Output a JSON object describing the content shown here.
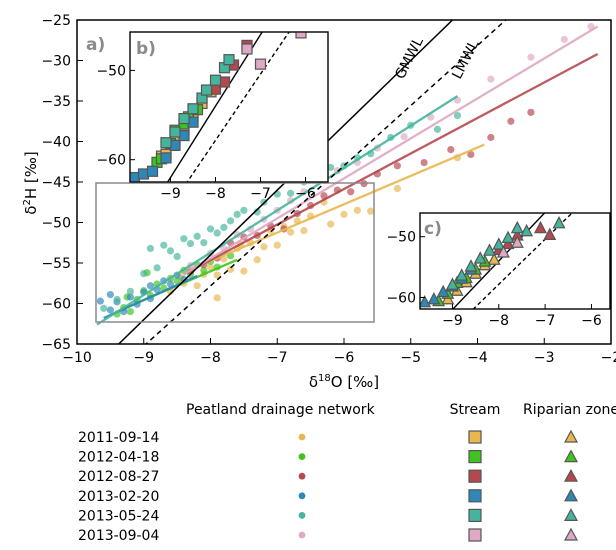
{
  "chart_data": {
    "type": "scatter",
    "xlabel": "δ18O [‰]",
    "ylabel": "δ2H [‰]",
    "xlim": [
      -10,
      -2
    ],
    "ylim": [
      -65,
      -25
    ],
    "x_ticks": [
      "−10",
      "−9",
      "−8",
      "−7",
      "−6",
      "−5",
      "−4",
      "−3",
      "−2"
    ],
    "y_ticks": [
      "−25",
      "−30",
      "−35",
      "−40",
      "−45",
      "−50",
      "−55",
      "−60",
      "−65"
    ],
    "grid": false,
    "reference_lines": [
      {
        "label": "GMWL",
        "style": "solid",
        "color": "#000000",
        "x": [
          -9.5,
          -4.35
        ],
        "y": [
          -66,
          -24.8
        ]
      },
      {
        "label": "LMWL",
        "style": "dashed",
        "color": "#000000",
        "x": [
          -9.1,
          -3.55
        ],
        "y": [
          -66,
          -24.8
        ]
      }
    ],
    "panel_labels": {
      "a": "a)",
      "b": "b)",
      "c": "c)"
    },
    "legend": {
      "headers": [
        "Peatland drainage network",
        "Stream",
        "Riparian zone"
      ],
      "dates": [
        "2011-09-14",
        "2012-04-18",
        "2012-08-27",
        "2013-02-20",
        "2013-05-24",
        "2013-09-04"
      ],
      "colors": [
        "#e8b74e",
        "#3ec41e",
        "#b5484e",
        "#2d88b8",
        "#44b59c",
        "#dea9c4"
      ]
    },
    "series": [
      {
        "name": "2011-09-14",
        "color": "#e8b74e",
        "fit": {
          "x": [
            -8.3,
            -3.9
          ],
          "y": [
            -55.8,
            -40.4
          ]
        },
        "points": [
          [
            -8.6,
            -58.5
          ],
          [
            -8.4,
            -57.5
          ],
          [
            -8.2,
            -57.8
          ],
          [
            -8.1,
            -56.4
          ],
          [
            -8.0,
            -55.5
          ],
          [
            -7.9,
            -56.5
          ],
          [
            -7.8,
            -54.5
          ],
          [
            -7.7,
            -55.8
          ],
          [
            -7.6,
            -53.2
          ],
          [
            -7.5,
            -56
          ],
          [
            -7.4,
            -52.5
          ],
          [
            -7.3,
            -54.6
          ],
          [
            -7.2,
            -53
          ],
          [
            -7.1,
            -51
          ],
          [
            -7.0,
            -52.8
          ],
          [
            -6.9,
            -50.5
          ],
          [
            -6.8,
            -51.2
          ],
          [
            -6.7,
            -49.8
          ],
          [
            -6.6,
            -51
          ],
          [
            -6.5,
            -49.2
          ],
          [
            -6.3,
            -47.5
          ],
          [
            -6.2,
            -50.2
          ],
          [
            -6.0,
            -49
          ],
          [
            -5.8,
            -48.5
          ],
          [
            -5.6,
            -48.6
          ],
          [
            -5.2,
            -45.8
          ],
          [
            -4.3,
            -42
          ],
          [
            -7.9,
            -59.3
          ],
          [
            -8.45,
            -56.7
          ],
          [
            -7.55,
            -52.7
          ]
        ]
      },
      {
        "name": "2012-04-18",
        "color": "#3ec41e",
        "fit": {
          "x": [
            -9.4,
            -7.6
          ],
          "y": [
            -61,
            -54.6
          ]
        },
        "points": [
          [
            -9.4,
            -61.3
          ],
          [
            -9.3,
            -60.5
          ],
          [
            -9.2,
            -61
          ],
          [
            -9.1,
            -59.5
          ],
          [
            -9.0,
            -58.4
          ],
          [
            -8.9,
            -59
          ],
          [
            -8.8,
            -57.6
          ],
          [
            -8.7,
            -58.1
          ],
          [
            -8.6,
            -56.9
          ],
          [
            -8.5,
            -57.2
          ],
          [
            -8.4,
            -55.9
          ],
          [
            -8.3,
            -56.4
          ],
          [
            -8.2,
            -55.2
          ],
          [
            -8.1,
            -55.9
          ],
          [
            -8.0,
            -54.8
          ],
          [
            -7.9,
            -55.5
          ],
          [
            -7.7,
            -54.1
          ],
          [
            -8.95,
            -56.2
          ],
          [
            -9.25,
            -59.2
          ]
        ]
      },
      {
        "name": "2012-08-27",
        "color": "#b5484e",
        "fit": {
          "x": [
            -8.4,
            -2.2
          ],
          "y": [
            -56.4,
            -29.2
          ]
        },
        "points": [
          [
            -8.3,
            -56
          ],
          [
            -8.1,
            -55.2
          ],
          [
            -7.9,
            -54.4
          ],
          [
            -7.7,
            -52.5
          ],
          [
            -7.5,
            -51.8
          ],
          [
            -7.3,
            -51.6
          ],
          [
            -7.1,
            -50.4
          ],
          [
            -6.9,
            -50.8
          ],
          [
            -6.7,
            -48.9
          ],
          [
            -6.5,
            -47.9
          ],
          [
            -6.3,
            -46.7
          ],
          [
            -6.1,
            -46
          ],
          [
            -5.9,
            -46.2
          ],
          [
            -5.7,
            -45.2
          ],
          [
            -5.5,
            -44
          ],
          [
            -5.2,
            -43
          ],
          [
            -4.8,
            -42.6
          ],
          [
            -4.4,
            -41
          ],
          [
            -4.1,
            -41.6
          ],
          [
            -3.8,
            -39.5
          ],
          [
            -3.5,
            -37.5
          ],
          [
            -3.2,
            -36.4
          ]
        ]
      },
      {
        "name": "2013-02-20",
        "color": "#2d88b8",
        "fit": {
          "x": [
            -9.6,
            -8.2
          ],
          "y": [
            -61.8,
            -56.6
          ]
        },
        "points": [
          [
            -9.65,
            -59.7
          ],
          [
            -9.5,
            -60.8
          ],
          [
            -9.4,
            -59.8
          ],
          [
            -9.3,
            -61
          ],
          [
            -9.2,
            -59.2
          ],
          [
            -9.1,
            -60.1
          ],
          [
            -9.0,
            -58.6
          ],
          [
            -8.9,
            -57.8
          ],
          [
            -8.8,
            -58.3
          ],
          [
            -8.7,
            -57.2
          ],
          [
            -8.6,
            -57.6
          ],
          [
            -8.5,
            -56.5
          ],
          [
            -8.4,
            -57
          ],
          [
            -8.9,
            -59.4
          ],
          [
            -9.5,
            -58.9
          ]
        ]
      },
      {
        "name": "2013-05-24",
        "color": "#44b59c",
        "fit": {
          "x": [
            -9.7,
            -4.3
          ],
          "y": [
            -62.6,
            -34.4
          ]
        },
        "points": [
          [
            -9.6,
            -60.6
          ],
          [
            -9.4,
            -59.5
          ],
          [
            -9.2,
            -58.5
          ],
          [
            -9.0,
            -56.3
          ],
          [
            -8.9,
            -53.2
          ],
          [
            -8.8,
            -55.6
          ],
          [
            -8.7,
            -52.8
          ],
          [
            -8.6,
            -53.5
          ],
          [
            -8.5,
            -54.2
          ],
          [
            -8.4,
            -52
          ],
          [
            -8.3,
            -52.6
          ],
          [
            -8.2,
            -51.7
          ],
          [
            -8.1,
            -52.5
          ],
          [
            -8.0,
            -50.8
          ],
          [
            -7.9,
            -51.3
          ],
          [
            -7.8,
            -50.6
          ],
          [
            -7.7,
            -49.8
          ],
          [
            -7.6,
            -49
          ],
          [
            -7.5,
            -48.5
          ],
          [
            -7.3,
            -48.7
          ],
          [
            -7.2,
            -47.5
          ],
          [
            -7.0,
            -46.5
          ],
          [
            -6.8,
            -46.4
          ],
          [
            -6.6,
            -45
          ],
          [
            -6.4,
            -43.8
          ],
          [
            -6.2,
            -43.2
          ],
          [
            -6.0,
            -43
          ],
          [
            -5.8,
            -42
          ],
          [
            -5.6,
            -41.5
          ],
          [
            -5.3,
            -39.5
          ],
          [
            -5.0,
            -38
          ],
          [
            -4.6,
            -38.5
          ],
          [
            -4.3,
            -36.8
          ]
        ]
      },
      {
        "name": "2013-09-04",
        "color": "#dea9c4",
        "fit": {
          "x": [
            -8.4,
            -2.2
          ],
          "y": [
            -56.4,
            -25.8
          ]
        },
        "points": [
          [
            -8.3,
            -55.3
          ],
          [
            -8.0,
            -53.8
          ],
          [
            -7.8,
            -53.2
          ],
          [
            -7.6,
            -51.5
          ],
          [
            -7.4,
            -50.8
          ],
          [
            -7.2,
            -49.6
          ],
          [
            -7.0,
            -48.5
          ],
          [
            -6.8,
            -47.3
          ],
          [
            -6.6,
            -46.2
          ],
          [
            -6.3,
            -44.5
          ],
          [
            -6.1,
            -43.6
          ],
          [
            -5.8,
            -42.6
          ],
          [
            -5.5,
            -40.8
          ],
          [
            -5.1,
            -39.4
          ],
          [
            -4.7,
            -37
          ],
          [
            -4.3,
            -34.9
          ],
          [
            -3.8,
            -32.3
          ],
          [
            -3.2,
            -29.6
          ],
          [
            -2.7,
            -27.4
          ],
          [
            -2.3,
            -25.8
          ]
        ]
      }
    ],
    "inset_box_a": {
      "xlim": [
        -9.8,
        -5.6
      ],
      "ylim": [
        -62.4,
        -44.6
      ]
    },
    "inset_b": {
      "xlim": [
        -9.9,
        -5.5
      ],
      "ylim": [
        -62.5,
        -45.7
      ],
      "x_ticks": [
        "−9",
        "−8",
        "−7",
        "−6"
      ],
      "y_ticks": [
        "−50",
        "−60"
      ],
      "marker": "square",
      "points": [
        [
          -9.2,
          -59.6,
          0
        ],
        [
          -9.1,
          -59.4,
          0
        ],
        [
          -8.9,
          -57.8,
          0
        ],
        [
          -8.7,
          -56.5,
          0
        ],
        [
          -8.5,
          -55.1,
          0
        ],
        [
          -8.3,
          -53.7,
          0
        ],
        [
          -8.1,
          -52.4,
          0
        ],
        [
          -9.3,
          -60.3,
          1
        ],
        [
          -9.2,
          -59.9,
          1
        ],
        [
          -9.0,
          -58.2,
          1
        ],
        [
          -8.9,
          -56.7,
          1
        ],
        [
          -8.7,
          -56,
          1
        ],
        [
          -8.6,
          -55.2,
          1
        ],
        [
          -8.4,
          -54.4,
          1
        ],
        [
          -8.0,
          -52.1,
          2
        ],
        [
          -7.8,
          -51.3,
          2
        ],
        [
          -7.6,
          -49.4,
          2
        ],
        [
          -7.3,
          -47.2,
          2
        ],
        [
          -9.8,
          -62,
          3
        ],
        [
          -9.6,
          -61.6,
          3
        ],
        [
          -9.4,
          -61.3,
          3
        ],
        [
          -9.1,
          -59.8,
          3
        ],
        [
          -8.9,
          -58.4,
          3
        ],
        [
          -8.7,
          -57.3,
          3
        ],
        [
          -8.5,
          -55.8,
          3
        ],
        [
          -9.1,
          -58.1,
          4
        ],
        [
          -8.9,
          -56.9,
          4
        ],
        [
          -8.7,
          -55.4,
          4
        ],
        [
          -8.5,
          -54.3,
          4
        ],
        [
          -8.3,
          -53.1,
          4
        ],
        [
          -8.2,
          -52.2,
          4
        ],
        [
          -8.0,
          -51.1,
          4
        ],
        [
          -7.8,
          -49.7,
          4
        ],
        [
          -7.7,
          -48.8,
          4
        ],
        [
          -7.3,
          -47.6,
          5
        ],
        [
          -7.0,
          -49.3,
          5
        ],
        [
          -6.1,
          -45.8,
          5
        ]
      ]
    },
    "inset_c": {
      "xlim": [
        -9.7,
        -5.6
      ],
      "ylim": [
        -61.9,
        -46.1
      ],
      "x_ticks": [
        "−9",
        "−8",
        "−7",
        "−6"
      ],
      "y_ticks": [
        "−50",
        "−60"
      ],
      "marker": "triangle",
      "points": [
        [
          -9.1,
          -60.3,
          0
        ],
        [
          -8.9,
          -58.9,
          0
        ],
        [
          -8.7,
          -57.5,
          0
        ],
        [
          -8.5,
          -56.1,
          0
        ],
        [
          -8.3,
          -54.7,
          0
        ],
        [
          -8.1,
          -53.8,
          0
        ],
        [
          -9.3,
          -60.6,
          1
        ],
        [
          -9.1,
          -59.4,
          1
        ],
        [
          -8.9,
          -57.6,
          1
        ],
        [
          -8.7,
          -56.8,
          1
        ],
        [
          -8.5,
          -55.4,
          1
        ],
        [
          -8.3,
          -54.1,
          1
        ],
        [
          -8.0,
          -52.2,
          2
        ],
        [
          -7.8,
          -51.2,
          2
        ],
        [
          -7.6,
          -49.8,
          2
        ],
        [
          -7.1,
          -48.6,
          2
        ],
        [
          -6.9,
          -49.7,
          2
        ],
        [
          -9.6,
          -60.8,
          3
        ],
        [
          -9.4,
          -60.3,
          3
        ],
        [
          -9.2,
          -59.1,
          3
        ],
        [
          -9.0,
          -58.2,
          3
        ],
        [
          -8.8,
          -56.9,
          3
        ],
        [
          -8.6,
          -55.4,
          3
        ],
        [
          -9.0,
          -57.9,
          4
        ],
        [
          -8.8,
          -56.4,
          4
        ],
        [
          -8.6,
          -54.9,
          4
        ],
        [
          -8.4,
          -53.6,
          4
        ],
        [
          -8.2,
          -52.3,
          4
        ],
        [
          -8.0,
          -51.3,
          4
        ],
        [
          -7.8,
          -50.2,
          4
        ],
        [
          -7.6,
          -48.6,
          4
        ],
        [
          -7.4,
          -49.1,
          4
        ],
        [
          -6.7,
          -47.8,
          4
        ],
        [
          -7.9,
          -52.6,
          5
        ],
        [
          -7.6,
          -51,
          5
        ]
      ]
    }
  }
}
